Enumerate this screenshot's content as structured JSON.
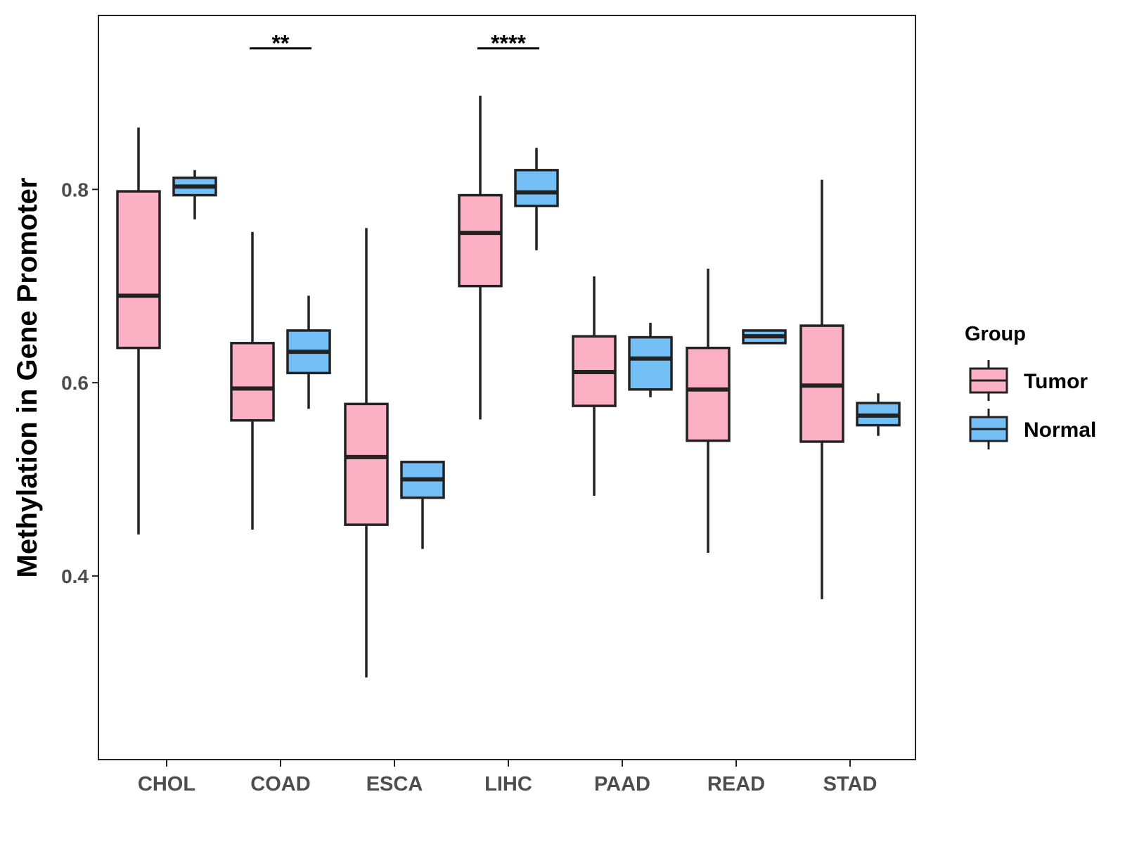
{
  "chart_data": {
    "type": "boxplot",
    "title": "",
    "xlabel": "",
    "ylabel": "Methylation in Gene Promoter",
    "ylim": [
      0.21,
      0.98
    ],
    "yticks": [
      0.4,
      0.6,
      0.8
    ],
    "ytick_labels": [
      "0.4",
      "0.6",
      "0.8"
    ],
    "categories": [
      "CHOL",
      "COAD",
      "ESCA",
      "LIHC",
      "PAAD",
      "READ",
      "STAD"
    ],
    "legend": {
      "title": "Group",
      "position": "right"
    },
    "series": [
      {
        "name": "Tumor",
        "color": "#FBB0C4",
        "boxes": [
          {
            "category": "CHOL",
            "whisker_low": 0.443,
            "q1": 0.636,
            "median": 0.69,
            "q3": 0.798,
            "whisker_high": 0.864
          },
          {
            "category": "COAD",
            "whisker_low": 0.448,
            "q1": 0.561,
            "median": 0.594,
            "q3": 0.641,
            "whisker_high": 0.756
          },
          {
            "category": "ESCA",
            "whisker_low": 0.295,
            "q1": 0.453,
            "median": 0.523,
            "q3": 0.578,
            "whisker_high": 0.76
          },
          {
            "category": "LIHC",
            "whisker_low": 0.562,
            "q1": 0.7,
            "median": 0.755,
            "q3": 0.794,
            "whisker_high": 0.897
          },
          {
            "category": "PAAD",
            "whisker_low": 0.483,
            "q1": 0.576,
            "median": 0.611,
            "q3": 0.648,
            "whisker_high": 0.71
          },
          {
            "category": "READ",
            "whisker_low": 0.424,
            "q1": 0.54,
            "median": 0.593,
            "q3": 0.636,
            "whisker_high": 0.718
          },
          {
            "category": "STAD",
            "whisker_low": 0.376,
            "q1": 0.539,
            "median": 0.597,
            "q3": 0.659,
            "whisker_high": 0.81
          }
        ]
      },
      {
        "name": "Normal",
        "color": "#74C0F6",
        "boxes": [
          {
            "category": "CHOL",
            "whisker_low": 0.769,
            "q1": 0.794,
            "median": 0.803,
            "q3": 0.812,
            "whisker_high": 0.82
          },
          {
            "category": "COAD",
            "whisker_low": 0.573,
            "q1": 0.61,
            "median": 0.632,
            "q3": 0.654,
            "whisker_high": 0.69
          },
          {
            "category": "ESCA",
            "whisker_low": 0.428,
            "q1": 0.481,
            "median": 0.5,
            "q3": 0.518,
            "whisker_high": 0.519
          },
          {
            "category": "LIHC",
            "whisker_low": 0.737,
            "q1": 0.783,
            "median": 0.797,
            "q3": 0.82,
            "whisker_high": 0.843
          },
          {
            "category": "PAAD",
            "whisker_low": 0.585,
            "q1": 0.593,
            "median": 0.625,
            "q3": 0.647,
            "whisker_high": 0.662
          },
          {
            "category": "READ",
            "whisker_low": 0.641,
            "q1": 0.641,
            "median": 0.648,
            "q3": 0.654,
            "whisker_high": 0.654
          },
          {
            "category": "STAD",
            "whisker_low": 0.545,
            "q1": 0.556,
            "median": 0.566,
            "q3": 0.579,
            "whisker_high": 0.589
          }
        ]
      }
    ],
    "annotations": [
      {
        "category": "COAD",
        "label": "**",
        "y": 0.946
      },
      {
        "category": "LIHC",
        "label": "****",
        "y": 0.946
      }
    ]
  }
}
